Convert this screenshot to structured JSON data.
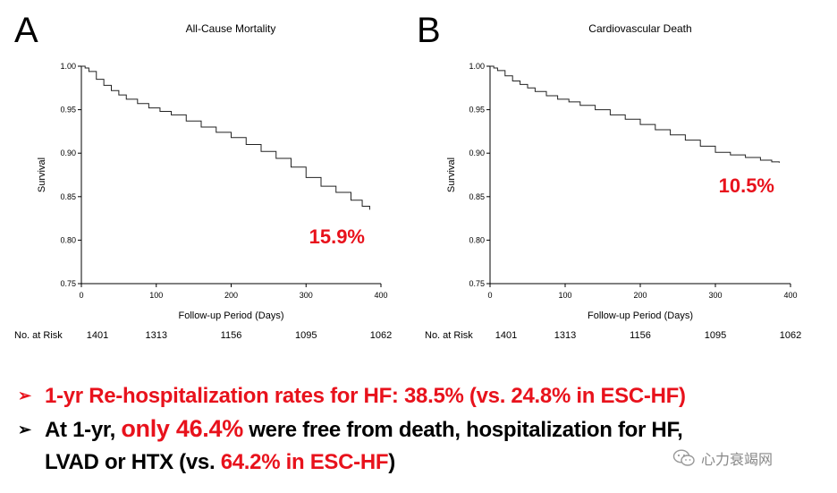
{
  "panels": {
    "a": {
      "letter": "A"
    },
    "b": {
      "letter": "B"
    }
  },
  "chart_data": [
    {
      "type": "line",
      "panel": "A",
      "title": "All-Cause Mortality",
      "xlabel": "Follow-up Period (Days)",
      "ylabel": "Survival",
      "xlim": [
        0,
        400
      ],
      "ylim": [
        0.75,
        1.0
      ],
      "x_ticks": [
        0,
        100,
        200,
        300,
        400
      ],
      "y_ticks": [
        "1.00",
        "0.95",
        "0.90",
        "0.85",
        "0.80",
        "0.75"
      ],
      "series": [
        {
          "name": "All-Cause Mortality",
          "x": [
            0,
            5,
            10,
            20,
            30,
            40,
            50,
            60,
            75,
            90,
            105,
            120,
            140,
            160,
            180,
            200,
            220,
            240,
            260,
            280,
            300,
            320,
            340,
            360,
            375,
            385
          ],
          "y": [
            1.0,
            0.998,
            0.994,
            0.985,
            0.978,
            0.972,
            0.967,
            0.962,
            0.957,
            0.952,
            0.948,
            0.944,
            0.937,
            0.93,
            0.924,
            0.918,
            0.91,
            0.902,
            0.894,
            0.884,
            0.872,
            0.862,
            0.855,
            0.846,
            0.839,
            0.835
          ]
        }
      ],
      "annotation": "15.9%",
      "at_risk_label": "No. at Risk",
      "at_risk": [
        "1401",
        "1313",
        "1156",
        "1095",
        "1062"
      ]
    },
    {
      "type": "line",
      "panel": "B",
      "title": "Cardiovascular Death",
      "xlabel": "Follow-up Period (Days)",
      "ylabel": "Survival",
      "xlim": [
        0,
        400
      ],
      "ylim": [
        0.75,
        1.0
      ],
      "x_ticks": [
        0,
        100,
        200,
        300,
        400
      ],
      "y_ticks": [
        "1.00",
        "0.95",
        "0.90",
        "0.85",
        "0.80",
        "0.75"
      ],
      "series": [
        {
          "name": "Cardiovascular Death",
          "x": [
            0,
            5,
            10,
            20,
            30,
            40,
            50,
            60,
            75,
            90,
            105,
            120,
            140,
            160,
            180,
            200,
            220,
            240,
            260,
            280,
            300,
            320,
            340,
            360,
            375,
            385
          ],
          "y": [
            1.0,
            0.998,
            0.995,
            0.989,
            0.983,
            0.979,
            0.975,
            0.971,
            0.966,
            0.962,
            0.959,
            0.955,
            0.95,
            0.944,
            0.939,
            0.933,
            0.927,
            0.921,
            0.915,
            0.908,
            0.901,
            0.898,
            0.895,
            0.892,
            0.89,
            0.889
          ]
        }
      ],
      "annotation": "10.5%",
      "at_risk_label": "No. at Risk",
      "at_risk": [
        "1401",
        "1313",
        "1156",
        "1095",
        "1062"
      ]
    }
  ],
  "bullets": {
    "line1": "1-yr Re-hospitalization rates for HF: 38.5% (vs. 24.8% in ESC-HF)",
    "line2_pre": "At 1-yr, ",
    "line2_red": "only 46.4%",
    "line2_post": " were free from death, hospitalization for HF,",
    "line3_pre": "LVAD or HTX (vs. ",
    "line3_red": "64.2% in ESC-HF",
    "line3_post": ")",
    "arrow_glyph": "➢"
  },
  "watermark": {
    "text": "心力衰竭网",
    "icon": "wechat-icon"
  },
  "colors": {
    "accent_red": "#e8121c",
    "curve": "#222222"
  }
}
